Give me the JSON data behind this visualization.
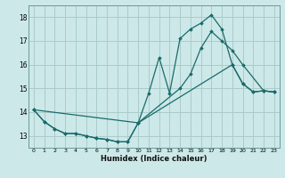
{
  "xlabel": "Humidex (Indice chaleur)",
  "bg_color": "#cde8e8",
  "grid_color": "#aacccc",
  "line_color": "#1a6b6b",
  "xlim": [
    -0.5,
    23.5
  ],
  "ylim": [
    12.5,
    18.5
  ],
  "yticks": [
    13,
    14,
    15,
    16,
    17,
    18
  ],
  "xticks": [
    0,
    1,
    2,
    3,
    4,
    5,
    6,
    7,
    8,
    9,
    10,
    11,
    12,
    13,
    14,
    15,
    16,
    17,
    18,
    19,
    20,
    21,
    22,
    23
  ],
  "lines": [
    {
      "x": [
        0,
        1,
        2,
        3,
        4,
        5,
        6,
        7,
        8,
        9,
        10,
        11,
        12,
        13,
        14,
        15,
        16,
        17,
        18,
        19,
        20,
        21,
        22,
        23
      ],
      "y": [
        14.1,
        13.6,
        13.3,
        13.1,
        13.1,
        13.0,
        12.9,
        12.85,
        12.75,
        12.75,
        13.55,
        14.8,
        16.3,
        14.8,
        17.1,
        17.5,
        17.75,
        18.1,
        17.5,
        16.0,
        15.2,
        14.85,
        14.9,
        14.85
      ]
    },
    {
      "x": [
        0,
        10,
        14,
        15,
        16,
        17,
        18,
        19,
        20,
        22,
        23
      ],
      "y": [
        14.1,
        13.55,
        15.0,
        15.6,
        16.7,
        17.4,
        17.0,
        16.6,
        16.0,
        14.9,
        14.85
      ]
    },
    {
      "x": [
        0,
        1,
        2,
        3,
        4,
        5,
        6,
        7,
        8,
        9,
        10,
        19,
        20,
        21,
        22,
        23
      ],
      "y": [
        14.1,
        13.6,
        13.3,
        13.1,
        13.1,
        13.0,
        12.9,
        12.85,
        12.75,
        12.75,
        13.55,
        16.0,
        15.2,
        14.85,
        14.9,
        14.85
      ]
    }
  ]
}
